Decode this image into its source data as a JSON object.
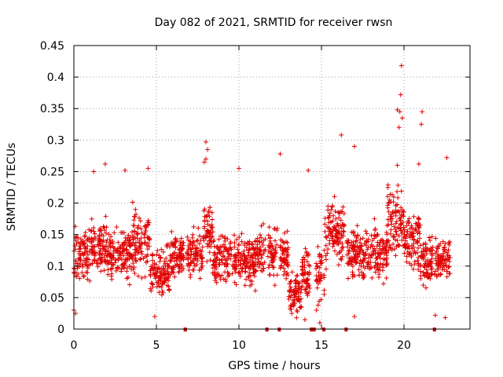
{
  "chart_data": {
    "type": "scatter",
    "title": "Day 082 of 2021, SRMTID for receiver rwsn",
    "xlabel": "GPS time / hours",
    "ylabel": "SRMTID / TECUs",
    "xlim": [
      0,
      24
    ],
    "ylim": [
      0,
      0.45
    ],
    "grid": true,
    "marker": "+",
    "x_ticks": [
      0,
      5,
      10,
      15,
      20
    ],
    "x_tick_labels": [
      "0",
      "5",
      "10",
      "15",
      "20"
    ],
    "y_ticks": [
      0,
      0.05,
      0.1,
      0.15,
      0.2,
      0.25,
      0.3,
      0.35,
      0.4,
      0.45
    ],
    "y_tick_labels": [
      "0",
      "0.05",
      "0.1",
      "0.15",
      "0.2",
      "0.25",
      "0.3",
      "0.35",
      "0.4",
      "0.45"
    ],
    "x_range_data": [
      0,
      22.8
    ],
    "baseline": {
      "description": "dense scatter of SRMTID values, mostly between 0.03 and 0.21 TECU",
      "typical_low": 0.04,
      "typical_high": 0.2
    },
    "segments": [
      {
        "x_start": 0.0,
        "x_end": 1.0,
        "mean": 0.12,
        "spread": 0.07
      },
      {
        "x_start": 1.0,
        "x_end": 2.0,
        "mean": 0.13,
        "spread": 0.07
      },
      {
        "x_start": 2.0,
        "x_end": 3.5,
        "mean": 0.12,
        "spread": 0.07
      },
      {
        "x_start": 3.5,
        "x_end": 4.6,
        "mean": 0.14,
        "spread": 0.08
      },
      {
        "x_start": 4.6,
        "x_end": 5.8,
        "mean": 0.09,
        "spread": 0.06
      },
      {
        "x_start": 5.8,
        "x_end": 7.8,
        "mean": 0.12,
        "spread": 0.06
      },
      {
        "x_start": 7.8,
        "x_end": 8.4,
        "mean": 0.15,
        "spread": 0.09
      },
      {
        "x_start": 8.4,
        "x_end": 11.0,
        "mean": 0.11,
        "spread": 0.07
      },
      {
        "x_start": 11.0,
        "x_end": 13.0,
        "mean": 0.12,
        "spread": 0.07
      },
      {
        "x_start": 13.0,
        "x_end": 13.8,
        "mean": 0.06,
        "spread": 0.05
      },
      {
        "x_start": 13.8,
        "x_end": 15.2,
        "mean": 0.09,
        "spread": 0.07
      },
      {
        "x_start": 15.2,
        "x_end": 16.5,
        "mean": 0.15,
        "spread": 0.08
      },
      {
        "x_start": 16.5,
        "x_end": 19.0,
        "mean": 0.12,
        "spread": 0.07
      },
      {
        "x_start": 19.0,
        "x_end": 20.0,
        "mean": 0.17,
        "spread": 0.1
      },
      {
        "x_start": 20.0,
        "x_end": 21.0,
        "mean": 0.14,
        "spread": 0.08
      },
      {
        "x_start": 21.0,
        "x_end": 22.8,
        "mean": 0.11,
        "spread": 0.06
      }
    ],
    "notable_points": [
      {
        "x": 19.85,
        "y": 0.418
      },
      {
        "x": 19.8,
        "y": 0.372
      },
      {
        "x": 19.6,
        "y": 0.348
      },
      {
        "x": 19.75,
        "y": 0.345
      },
      {
        "x": 21.1,
        "y": 0.345
      },
      {
        "x": 19.9,
        "y": 0.335
      },
      {
        "x": 21.05,
        "y": 0.325
      },
      {
        "x": 19.7,
        "y": 0.32
      },
      {
        "x": 16.2,
        "y": 0.308
      },
      {
        "x": 8.0,
        "y": 0.297
      },
      {
        "x": 17.0,
        "y": 0.29
      },
      {
        "x": 8.1,
        "y": 0.285
      },
      {
        "x": 12.5,
        "y": 0.278
      },
      {
        "x": 22.6,
        "y": 0.272
      },
      {
        "x": 8.0,
        "y": 0.27
      },
      {
        "x": 7.9,
        "y": 0.265
      },
      {
        "x": 1.9,
        "y": 0.262
      },
      {
        "x": 20.9,
        "y": 0.262
      },
      {
        "x": 19.6,
        "y": 0.26
      },
      {
        "x": 10.0,
        "y": 0.255
      },
      {
        "x": 4.5,
        "y": 0.255
      },
      {
        "x": 14.2,
        "y": 0.252
      },
      {
        "x": 3.1,
        "y": 0.252
      },
      {
        "x": 1.2,
        "y": 0.25
      },
      {
        "x": 0.0,
        "y": 0.03
      },
      {
        "x": 0.1,
        "y": 0.025
      },
      {
        "x": 4.9,
        "y": 0.02
      },
      {
        "x": 13.2,
        "y": 0.025
      },
      {
        "x": 13.1,
        "y": 0.032
      },
      {
        "x": 14.0,
        "y": 0.015
      },
      {
        "x": 14.8,
        "y": 0.038
      },
      {
        "x": 14.7,
        "y": 0.03
      },
      {
        "x": 14.9,
        "y": 0.01
      },
      {
        "x": 22.5,
        "y": 0.018
      },
      {
        "x": 21.9,
        "y": 0.022
      },
      {
        "x": 17.0,
        "y": 0.02
      }
    ],
    "data_gaps": [
      {
        "x_start": 6.65,
        "x_end": 6.85
      },
      {
        "x_start": 11.6,
        "x_end": 11.75
      },
      {
        "x_start": 12.35,
        "x_end": 12.5
      },
      {
        "x_start": 14.3,
        "x_end": 14.65
      },
      {
        "x_start": 15.05,
        "x_end": 15.15
      },
      {
        "x_start": 16.4,
        "x_end": 16.55
      },
      {
        "x_start": 21.75,
        "x_end": 21.85
      }
    ],
    "colors": {
      "marker": "#e00000",
      "gap_marker": "#cc0000"
    }
  }
}
